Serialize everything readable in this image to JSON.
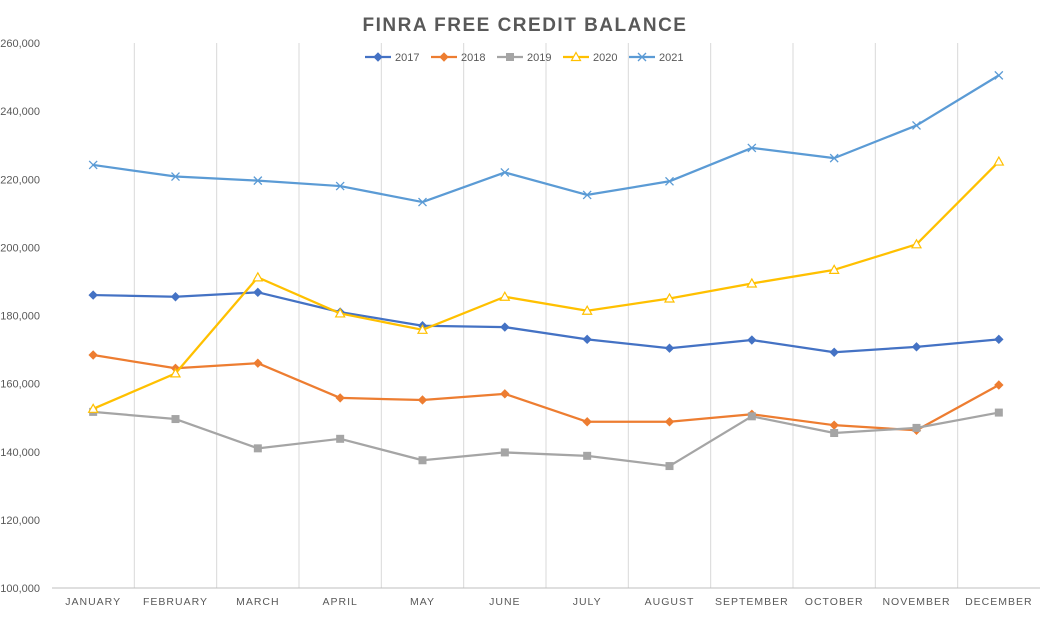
{
  "chart_data": {
    "type": "line",
    "title": "FINRA FREE CREDIT BALANCE",
    "xlabel": "",
    "ylabel": "",
    "categories": [
      "JANUARY",
      "FEBRUARY",
      "MARCH",
      "APRIL",
      "MAY",
      "JUNE",
      "JULY",
      "AUGUST",
      "SEPTEMBER",
      "OCTOBER",
      "NOVEMBER",
      "DECEMBER"
    ],
    "ylim": [
      100000,
      260000
    ],
    "yticks": [
      100000,
      120000,
      140000,
      160000,
      180000,
      200000,
      220000,
      240000,
      260000
    ],
    "ytick_labels": [
      "100,000",
      "120,000",
      "140,000",
      "160,000",
      "180,000",
      "200,000",
      "220,000",
      "240,000",
      "260,000"
    ],
    "grid": "vertical",
    "legend_position": "top",
    "series": [
      {
        "name": "2017",
        "color": "#4472C4",
        "marker": "diamond",
        "values": [
          186000,
          185500,
          186800,
          181000,
          177000,
          176600,
          173000,
          170400,
          172800,
          169200,
          170800,
          173000
        ]
      },
      {
        "name": "2018",
        "color": "#ED7D31",
        "marker": "diamond",
        "values": [
          168400,
          164500,
          166000,
          155800,
          155200,
          157000,
          148800,
          148800,
          151000,
          147800,
          146300,
          159600
        ]
      },
      {
        "name": "2019",
        "color": "#A5A5A5",
        "marker": "square",
        "values": [
          151700,
          149600,
          141000,
          143800,
          137500,
          139800,
          138800,
          135800,
          150400,
          145500,
          147000,
          151500
        ]
      },
      {
        "name": "2020",
        "color": "#FFC000",
        "marker": "triangle",
        "values": [
          152600,
          163000,
          191200,
          180600,
          175800,
          185500,
          181400,
          185000,
          189400,
          193400,
          200900,
          225200
        ]
      },
      {
        "name": "2021",
        "color": "#5B9BD5",
        "marker": "x",
        "values": [
          224200,
          220800,
          219600,
          218000,
          213300,
          222000,
          215400,
          219400,
          229200,
          226200,
          235800,
          250500
        ]
      }
    ]
  }
}
